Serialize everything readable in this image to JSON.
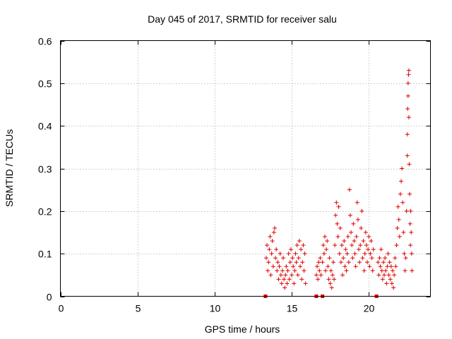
{
  "chart_data": {
    "type": "scatter",
    "title": "Day 045 of 2017, SRMTID for receiver salu",
    "xlabel": "GPS time / hours",
    "ylabel": "SRMTID / TECUs",
    "xlim": [
      0,
      24
    ],
    "ylim": [
      0,
      0.6
    ],
    "xticks": [
      0,
      5,
      10,
      15,
      20
    ],
    "xtick_labels": [
      "0",
      "5",
      "10",
      "15",
      "20"
    ],
    "yticks": [
      0,
      0.1,
      0.2,
      0.3,
      0.4,
      0.5,
      0.6
    ],
    "ytick_labels": [
      "0",
      "0.1",
      "0.2",
      "0.3",
      "0.4",
      "0.5",
      "0.6"
    ],
    "grid": true,
    "marker": "plus",
    "color": "#dd0000",
    "series": [
      {
        "name": "SRMTID",
        "points": [
          [
            13.35,
            0.09
          ],
          [
            13.4,
            0.12
          ],
          [
            13.45,
            0.06
          ],
          [
            13.5,
            0.08
          ],
          [
            13.55,
            0.11
          ],
          [
            13.6,
            0.14
          ],
          [
            13.65,
            0.05
          ],
          [
            13.7,
            0.1
          ],
          [
            13.75,
            0.13
          ],
          [
            13.8,
            0.07
          ],
          [
            13.85,
            0.15
          ],
          [
            13.9,
            0.16
          ],
          [
            13.95,
            0.09
          ],
          [
            14.0,
            0.11
          ],
          [
            14.05,
            0.06
          ],
          [
            14.1,
            0.08
          ],
          [
            14.15,
            0.04
          ],
          [
            14.2,
            0.07
          ],
          [
            14.25,
            0.1
          ],
          [
            14.3,
            0.05
          ],
          [
            14.35,
            0.03
          ],
          [
            14.4,
            0.06
          ],
          [
            14.45,
            0.09
          ],
          [
            14.5,
            0.04
          ],
          [
            14.55,
            0.02
          ],
          [
            14.6,
            0.05
          ],
          [
            14.65,
            0.07
          ],
          [
            14.7,
            0.03
          ],
          [
            14.75,
            0.06
          ],
          [
            14.8,
            0.1
          ],
          [
            14.85,
            0.04
          ],
          [
            14.9,
            0.08
          ],
          [
            14.95,
            0.11
          ],
          [
            15.0,
            0.05
          ],
          [
            15.05,
            0.09
          ],
          [
            15.1,
            0.07
          ],
          [
            15.15,
            0.03
          ],
          [
            15.2,
            0.06
          ],
          [
            15.25,
            0.1
          ],
          [
            15.3,
            0.08
          ],
          [
            15.35,
            0.12
          ],
          [
            15.4,
            0.05
          ],
          [
            15.45,
            0.09
          ],
          [
            15.5,
            0.13
          ],
          [
            15.55,
            0.07
          ],
          [
            15.6,
            0.11
          ],
          [
            15.65,
            0.04
          ],
          [
            15.7,
            0.08
          ],
          [
            15.75,
            0.12
          ],
          [
            15.8,
            0.06
          ],
          [
            15.85,
            0.1
          ],
          [
            15.9,
            0.03
          ],
          [
            16.6,
            0.05
          ],
          [
            16.65,
            0.07
          ],
          [
            16.7,
            0.04
          ],
          [
            16.75,
            0.08
          ],
          [
            16.8,
            0.06
          ],
          [
            16.85,
            0.09
          ],
          [
            16.9,
            0.05
          ],
          [
            17.0,
            0.08
          ],
          [
            17.05,
            0.12
          ],
          [
            17.1,
            0.1
          ],
          [
            17.15,
            0.14
          ],
          [
            17.2,
            0.06
          ],
          [
            17.25,
            0.11
          ],
          [
            17.3,
            0.13
          ],
          [
            17.35,
            0.07
          ],
          [
            17.4,
            0.04
          ],
          [
            17.45,
            0.09
          ],
          [
            17.5,
            0.03
          ],
          [
            17.55,
            0.06
          ],
          [
            17.6,
            0.02
          ],
          [
            17.65,
            0.05
          ],
          [
            17.7,
            0.08
          ],
          [
            17.75,
            0.04
          ],
          [
            17.8,
            0.12
          ],
          [
            17.85,
            0.19
          ],
          [
            17.9,
            0.22
          ],
          [
            17.95,
            0.17
          ],
          [
            18.0,
            0.14
          ],
          [
            18.05,
            0.21
          ],
          [
            18.1,
            0.1
          ],
          [
            18.15,
            0.16
          ],
          [
            18.2,
            0.08
          ],
          [
            18.25,
            0.12
          ],
          [
            18.3,
            0.05
          ],
          [
            18.35,
            0.09
          ],
          [
            18.4,
            0.13
          ],
          [
            18.45,
            0.07
          ],
          [
            18.5,
            0.11
          ],
          [
            18.55,
            0.06
          ],
          [
            18.6,
            0.1
          ],
          [
            18.65,
            0.14
          ],
          [
            18.7,
            0.08
          ],
          [
            18.75,
            0.25
          ],
          [
            18.8,
            0.19
          ],
          [
            18.85,
            0.15
          ],
          [
            18.9,
            0.12
          ],
          [
            18.95,
            0.09
          ],
          [
            19.0,
            0.17
          ],
          [
            19.05,
            0.13
          ],
          [
            19.1,
            0.1
          ],
          [
            19.15,
            0.07
          ],
          [
            19.2,
            0.14
          ],
          [
            19.25,
            0.22
          ],
          [
            19.3,
            0.18
          ],
          [
            19.35,
            0.11
          ],
          [
            19.4,
            0.08
          ],
          [
            19.45,
            0.12
          ],
          [
            19.5,
            0.16
          ],
          [
            19.55,
            0.2
          ],
          [
            19.6,
            0.09
          ],
          [
            19.65,
            0.13
          ],
          [
            19.7,
            0.06
          ],
          [
            19.75,
            0.1
          ],
          [
            19.8,
            0.15
          ],
          [
            19.85,
            0.12
          ],
          [
            19.9,
            0.08
          ],
          [
            19.95,
            0.11
          ],
          [
            20.0,
            0.14
          ],
          [
            20.05,
            0.07
          ],
          [
            20.1,
            0.1
          ],
          [
            20.15,
            0.13
          ],
          [
            20.2,
            0.09
          ],
          [
            20.25,
            0.06
          ],
          [
            20.3,
            0.11
          ],
          [
            20.6,
            0.08
          ],
          [
            20.65,
            0.05
          ],
          [
            20.7,
            0.09
          ],
          [
            20.75,
            0.07
          ],
          [
            20.8,
            0.11
          ],
          [
            20.85,
            0.06
          ],
          [
            20.9,
            0.04
          ],
          [
            20.95,
            0.08
          ],
          [
            21.0,
            0.05
          ],
          [
            21.05,
            0.09
          ],
          [
            21.1,
            0.06
          ],
          [
            21.15,
            0.03
          ],
          [
            21.2,
            0.07
          ],
          [
            21.25,
            0.1
          ],
          [
            21.3,
            0.05
          ],
          [
            21.35,
            0.08
          ],
          [
            21.4,
            0.04
          ],
          [
            21.45,
            0.07
          ],
          [
            21.5,
            0.03
          ],
          [
            21.55,
            0.06
          ],
          [
            21.6,
            0.02
          ],
          [
            21.65,
            0.05
          ],
          [
            21.7,
            0.09
          ],
          [
            21.75,
            0.07
          ],
          [
            21.8,
            0.12
          ],
          [
            21.85,
            0.16
          ],
          [
            21.9,
            0.21
          ],
          [
            21.95,
            0.18
          ],
          [
            22.0,
            0.14
          ],
          [
            22.05,
            0.24
          ],
          [
            22.1,
            0.27
          ],
          [
            22.15,
            0.3
          ],
          [
            22.2,
            0.22
          ],
          [
            22.25,
            0.15
          ],
          [
            22.3,
            0.1
          ],
          [
            22.35,
            0.06
          ],
          [
            22.4,
            0.09
          ],
          [
            22.45,
            0.2
          ],
          [
            22.5,
            0.33
          ],
          [
            22.5,
            0.38
          ],
          [
            22.52,
            0.44
          ],
          [
            22.55,
            0.47
          ],
          [
            22.55,
            0.5
          ],
          [
            22.58,
            0.52
          ],
          [
            22.6,
            0.53
          ],
          [
            22.6,
            0.42
          ],
          [
            22.62,
            0.31
          ],
          [
            22.65,
            0.24
          ],
          [
            22.68,
            0.17
          ],
          [
            22.7,
            0.12
          ],
          [
            22.72,
            0.2
          ],
          [
            22.75,
            0.15
          ],
          [
            22.78,
            0.1
          ],
          [
            22.8,
            0.06
          ]
        ]
      },
      {
        "name": "zero markers",
        "marker": "square",
        "points": [
          [
            13.3,
            0
          ],
          [
            16.6,
            0
          ],
          [
            17.0,
            0
          ],
          [
            20.5,
            0
          ]
        ]
      }
    ]
  }
}
